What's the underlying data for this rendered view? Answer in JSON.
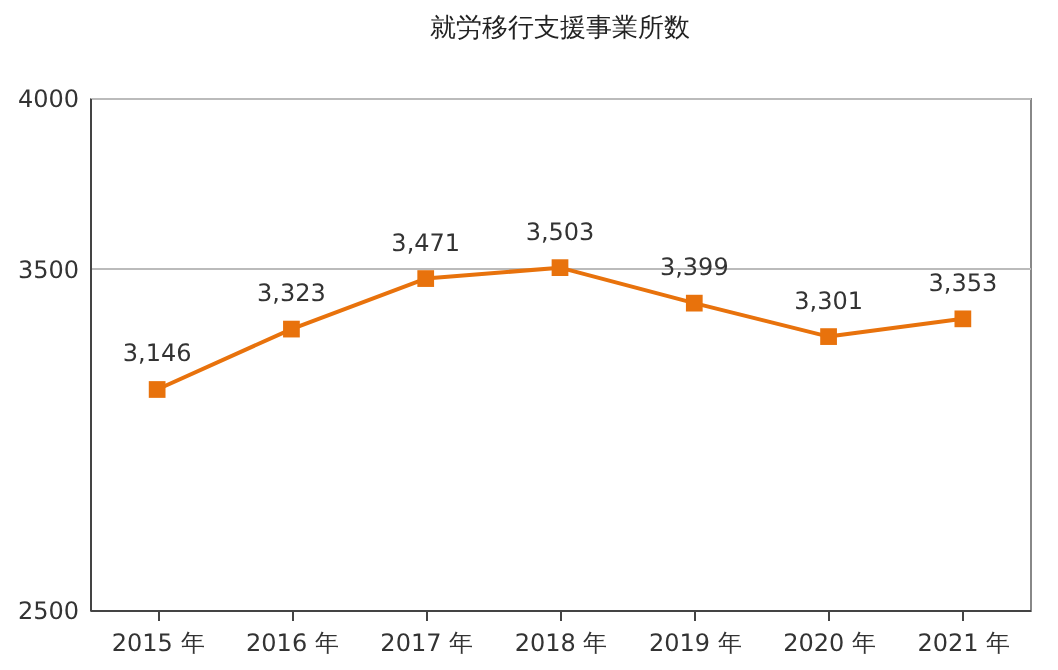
{
  "chart_data": {
    "type": "line",
    "title": "就労移行支援事業所数",
    "categories": [
      "2015 年",
      "2016 年",
      "2017 年",
      "2018 年",
      "2019 年",
      "2020 年",
      "2021 年"
    ],
    "series": [
      {
        "color": "#e8720c",
        "values": [
          3146,
          3323,
          3471,
          3503,
          3399,
          3301,
          3353
        ],
        "value_labels": [
          "3,146",
          "3,323",
          "3,471",
          "3,503",
          "3,399",
          "3,301",
          "3,353"
        ]
      }
    ],
    "ylim": [
      2500,
      4000
    ],
    "yticks": [
      2500,
      3500,
      4000
    ],
    "grid": "y",
    "marker": "square",
    "line_style": "solid",
    "legend": false
  }
}
